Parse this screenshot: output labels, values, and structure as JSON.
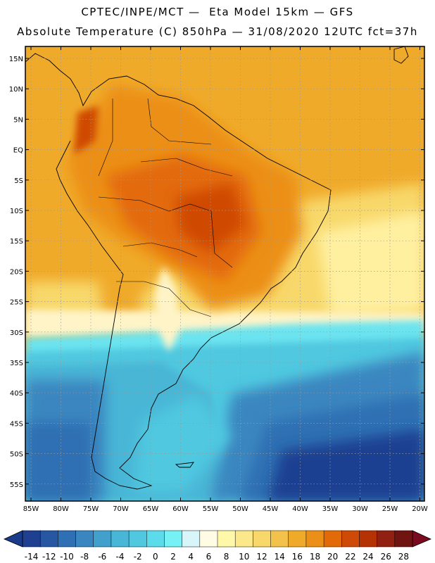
{
  "header": {
    "line1": "CPTEC/INPE/MCT —  Eta Model 15km — GFS",
    "line2": "Absolute Temperature (C) 850hPa — 31/08/2020 12UTC fct=37h"
  },
  "axes": {
    "lat_labels": [
      "15N",
      "10N",
      "5N",
      "EQ",
      "5S",
      "10S",
      "15S",
      "20S",
      "25S",
      "30S",
      "35S",
      "40S",
      "45S",
      "50S",
      "55S"
    ],
    "lon_labels": [
      "85W",
      "80W",
      "75W",
      "70W",
      "65W",
      "60W",
      "55W",
      "50W",
      "45W",
      "40W",
      "35W",
      "30W",
      "25W",
      "20W"
    ]
  },
  "colorbar": {
    "ticks": [
      "-14",
      "-12",
      "-10",
      "-8",
      "-6",
      "-4",
      "-2",
      "0",
      "2",
      "4",
      "6",
      "8",
      "10",
      "12",
      "14",
      "16",
      "18",
      "20",
      "22",
      "24",
      "26",
      "28"
    ],
    "colors": [
      "#1f3f91",
      "#2757a3",
      "#2f6fb3",
      "#3a86c0",
      "#42a0cc",
      "#48b6d6",
      "#4fc8e0",
      "#5cdcea",
      "#76f2f6",
      "#d8f6fa",
      "#fffbe4",
      "#fff8a8",
      "#fbe88a",
      "#f8d86a",
      "#f3c24a",
      "#f0aa2a",
      "#ec8f18",
      "#e36a08",
      "#cf4a06",
      "#b53204",
      "#912012",
      "#6f1410"
    ],
    "units": "C"
  }
}
